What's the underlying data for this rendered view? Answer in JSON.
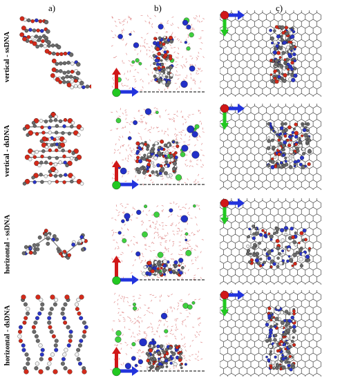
{
  "columns": [
    "a)",
    "b)",
    "c)"
  ],
  "rows": [
    {
      "label": "vertical - ssDNA"
    },
    {
      "label": "vertical - dsDNA"
    },
    {
      "label": "horizontal - ssDNA"
    },
    {
      "label": "horizontal - dsDNA"
    }
  ],
  "colors": {
    "carbon": "#6b6b6b",
    "oxygen": "#d42a1a",
    "nitrogen": "#2a35c8",
    "hydrogen": "#f2f2f2",
    "ion_blue": "#2230c8",
    "ion_green": "#3fd13f",
    "water": "#e08a8a",
    "axis_red": "#d01818",
    "axis_green": "#22c822",
    "axis_blue": "#2233dd",
    "graphene": "#222222"
  }
}
